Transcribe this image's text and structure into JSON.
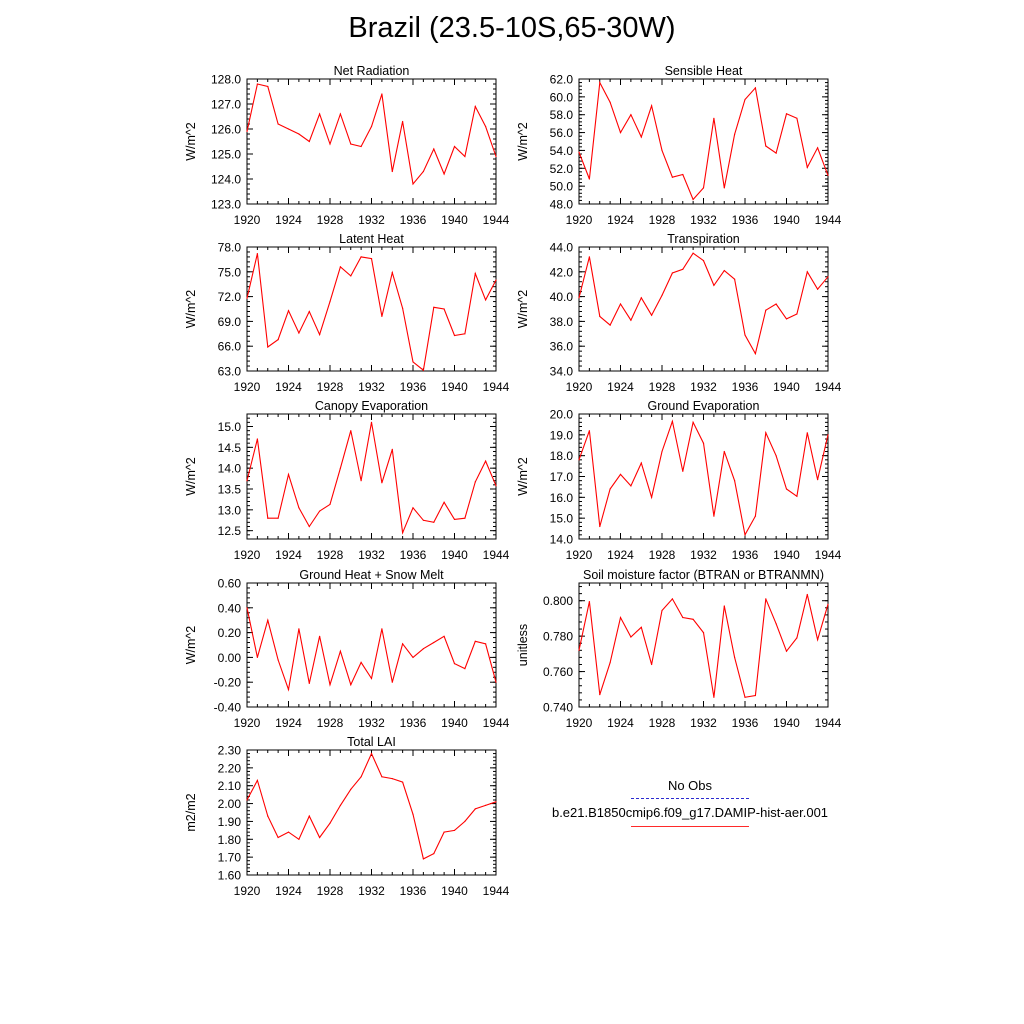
{
  "figure": {
    "title": "Brazil (23.5-10S,65-30W)",
    "legend": {
      "obs_label": "No Obs",
      "model_label": "b.e21.B1850cmip6.f09_g17.DAMIP-hist-aer.001",
      "obs_color": "#2b2bd0",
      "model_color": "#ff0000"
    }
  },
  "chart_data": [
    {
      "type": "line",
      "title": "Net Radiation",
      "ylabel": "W/m^2",
      "ylim": [
        123,
        128
      ],
      "yticks": [
        "123.0",
        "124.0",
        "125.0",
        "126.0",
        "127.0",
        "128.0"
      ],
      "xlim": [
        1920,
        1944
      ],
      "xticks": [
        "1920",
        "1924",
        "1928",
        "1932",
        "1936",
        "1940",
        "1944"
      ],
      "x": [
        1920,
        1921,
        1922,
        1923,
        1924,
        1925,
        1926,
        1927,
        1928,
        1929,
        1930,
        1931,
        1932,
        1933,
        1934,
        1935,
        1936,
        1937,
        1938,
        1939,
        1940,
        1941,
        1942,
        1943,
        1944
      ],
      "series": [
        {
          "name": "b.e21.B1850cmip6.f09_g17.DAMIP-hist-aer.001",
          "color": "#ff0000",
          "values": [
            125.9,
            127.8,
            127.7,
            126.2,
            126.0,
            125.8,
            125.5,
            126.6,
            125.4,
            126.6,
            125.4,
            125.3,
            126.1,
            127.4,
            124.3,
            126.3,
            123.8,
            124.3,
            125.2,
            124.2,
            125.3,
            124.9,
            126.9,
            126.1,
            124.9
          ]
        }
      ]
    },
    {
      "type": "line",
      "title": "Sensible Heat",
      "ylabel": "W/m^2",
      "ylim": [
        48,
        62
      ],
      "yticks": [
        "48.0",
        "50.0",
        "52.0",
        "54.0",
        "56.0",
        "58.0",
        "60.0",
        "62.0"
      ],
      "xlim": [
        1920,
        1944
      ],
      "xticks": [
        "1920",
        "1924",
        "1928",
        "1932",
        "1936",
        "1940",
        "1944"
      ],
      "x": [
        1920,
        1921,
        1922,
        1923,
        1924,
        1925,
        1926,
        1927,
        1928,
        1929,
        1930,
        1931,
        1932,
        1933,
        1934,
        1935,
        1936,
        1937,
        1938,
        1939,
        1940,
        1941,
        1942,
        1943,
        1944
      ],
      "series": [
        {
          "name": "b.e21.B1850cmip6.f09_g17.DAMIP-hist-aer.001",
          "color": "#ff0000",
          "values": [
            53.8,
            50.8,
            61.6,
            59.4,
            56.0,
            58.0,
            55.5,
            59.0,
            54.0,
            51.0,
            51.3,
            48.5,
            49.8,
            57.6,
            49.8,
            55.8,
            59.7,
            61.0,
            54.5,
            53.7,
            58.1,
            57.6,
            52.1,
            54.3,
            51.2
          ]
        }
      ]
    },
    {
      "type": "line",
      "title": "Latent Heat",
      "ylabel": "W/m^2",
      "ylim": [
        63,
        78
      ],
      "yticks": [
        "63.0",
        "66.0",
        "69.0",
        "72.0",
        "75.0",
        "78.0"
      ],
      "xlim": [
        1920,
        1944
      ],
      "xticks": [
        "1920",
        "1924",
        "1928",
        "1932",
        "1936",
        "1940",
        "1944"
      ],
      "x": [
        1920,
        1921,
        1922,
        1923,
        1924,
        1925,
        1926,
        1927,
        1928,
        1929,
        1930,
        1931,
        1932,
        1933,
        1934,
        1935,
        1936,
        1937,
        1938,
        1939,
        1940,
        1941,
        1942,
        1943,
        1944
      ],
      "series": [
        {
          "name": "b.e21.B1850cmip6.f09_g17.DAMIP-hist-aer.001",
          "color": "#ff0000",
          "values": [
            71.8,
            77.2,
            65.9,
            66.8,
            70.3,
            67.6,
            70.2,
            67.4,
            71.4,
            75.6,
            74.5,
            76.8,
            76.6,
            69.6,
            74.9,
            70.6,
            64.1,
            63.1,
            70.7,
            70.5,
            67.3,
            67.5,
            74.8,
            71.6,
            74.0
          ]
        }
      ]
    },
    {
      "type": "line",
      "title": "Transpiration",
      "ylabel": "W/m^2",
      "ylim": [
        34,
        44
      ],
      "yticks": [
        "34.0",
        "36.0",
        "38.0",
        "40.0",
        "42.0",
        "44.0"
      ],
      "xlim": [
        1920,
        1944
      ],
      "xticks": [
        "1920",
        "1924",
        "1928",
        "1932",
        "1936",
        "1940",
        "1944"
      ],
      "x": [
        1920,
        1921,
        1922,
        1923,
        1924,
        1925,
        1926,
        1927,
        1928,
        1929,
        1930,
        1931,
        1932,
        1933,
        1934,
        1935,
        1936,
        1937,
        1938,
        1939,
        1940,
        1941,
        1942,
        1943,
        1944
      ],
      "series": [
        {
          "name": "b.e21.B1850cmip6.f09_g17.DAMIP-hist-aer.001",
          "color": "#ff0000",
          "values": [
            39.9,
            43.2,
            38.4,
            37.7,
            39.4,
            38.1,
            39.9,
            38.5,
            40.1,
            41.9,
            42.2,
            43.5,
            42.9,
            40.9,
            42.1,
            41.4,
            36.9,
            35.4,
            38.9,
            39.4,
            38.2,
            38.6,
            42.0,
            40.6,
            41.6
          ]
        }
      ]
    },
    {
      "type": "line",
      "title": "Canopy Evaporation",
      "ylabel": "W/m^2",
      "ylim": [
        12.3,
        15.3
      ],
      "yticks": [
        "12.5",
        "13.0",
        "13.5",
        "14.0",
        "14.5",
        "15.0"
      ],
      "ytick_values": [
        12.5,
        13.0,
        13.5,
        14.0,
        14.5,
        15.0
      ],
      "xlim": [
        1920,
        1944
      ],
      "xticks": [
        "1920",
        "1924",
        "1928",
        "1932",
        "1936",
        "1940",
        "1944"
      ],
      "x": [
        1920,
        1921,
        1922,
        1923,
        1924,
        1925,
        1926,
        1927,
        1928,
        1929,
        1930,
        1931,
        1932,
        1933,
        1934,
        1935,
        1936,
        1937,
        1938,
        1939,
        1940,
        1941,
        1942,
        1943,
        1944
      ],
      "series": [
        {
          "name": "b.e21.B1850cmip6.f09_g17.DAMIP-hist-aer.001",
          "color": "#ff0000",
          "values": [
            13.7,
            14.7,
            12.8,
            12.8,
            13.85,
            13.05,
            12.6,
            12.97,
            13.13,
            14.0,
            14.9,
            13.7,
            15.1,
            13.65,
            14.45,
            12.45,
            13.05,
            12.75,
            12.7,
            13.18,
            12.77,
            12.8,
            13.67,
            14.17,
            13.58
          ]
        }
      ]
    },
    {
      "type": "line",
      "title": "Ground Evaporation",
      "ylabel": "W/m^2",
      "ylim": [
        14,
        20
      ],
      "yticks": [
        "14.0",
        "15.0",
        "16.0",
        "17.0",
        "18.0",
        "19.0",
        "20.0"
      ],
      "xlim": [
        1920,
        1944
      ],
      "xticks": [
        "1920",
        "1924",
        "1928",
        "1932",
        "1936",
        "1940",
        "1944"
      ],
      "x": [
        1920,
        1921,
        1922,
        1923,
        1924,
        1925,
        1926,
        1927,
        1928,
        1929,
        1930,
        1931,
        1932,
        1933,
        1934,
        1935,
        1936,
        1937,
        1938,
        1939,
        1940,
        1941,
        1942,
        1943,
        1944
      ],
      "series": [
        {
          "name": "b.e21.B1850cmip6.f09_g17.DAMIP-hist-aer.001",
          "color": "#ff0000",
          "values": [
            17.8,
            19.2,
            14.6,
            16.4,
            17.1,
            16.55,
            17.65,
            16.0,
            18.2,
            19.65,
            17.25,
            19.6,
            18.6,
            15.1,
            18.2,
            16.8,
            14.2,
            15.1,
            19.1,
            18.0,
            16.4,
            16.05,
            19.1,
            16.85,
            19.0
          ]
        }
      ]
    },
    {
      "type": "line",
      "title": "Ground Heat + Snow Melt",
      "ylabel": "W/m^2",
      "ylim": [
        -0.4,
        0.6
      ],
      "yticks": [
        "-0.40",
        "-0.20",
        "0.00",
        "0.20",
        "0.40",
        "0.60"
      ],
      "xlim": [
        1920,
        1944
      ],
      "xticks": [
        "1920",
        "1924",
        "1928",
        "1932",
        "1936",
        "1940",
        "1944"
      ],
      "x": [
        1920,
        1921,
        1922,
        1923,
        1924,
        1925,
        1926,
        1927,
        1928,
        1929,
        1930,
        1931,
        1932,
        1933,
        1934,
        1935,
        1936,
        1937,
        1938,
        1939,
        1940,
        1941,
        1942,
        1943,
        1944
      ],
      "series": [
        {
          "name": "b.e21.B1850cmip6.f09_g17.DAMIP-hist-aer.001",
          "color": "#ff0000",
          "values": [
            0.4,
            0.0,
            0.3,
            -0.02,
            -0.26,
            0.23,
            -0.21,
            0.17,
            -0.22,
            0.05,
            -0.22,
            -0.04,
            -0.17,
            0.23,
            -0.2,
            0.11,
            0.0,
            0.07,
            0.12,
            0.17,
            -0.05,
            -0.09,
            0.13,
            0.11,
            -0.2
          ]
        }
      ]
    },
    {
      "type": "line",
      "title": "Soil moisture factor (BTRAN or BTRANMN)",
      "ylabel": "unitless",
      "ylim": [
        0.74,
        0.81
      ],
      "yticks": [
        "0.740",
        "0.760",
        "0.780",
        "0.800"
      ],
      "ytick_values": [
        0.74,
        0.76,
        0.78,
        0.8
      ],
      "xlim": [
        1920,
        1944
      ],
      "xticks": [
        "1920",
        "1924",
        "1928",
        "1932",
        "1936",
        "1940",
        "1944"
      ],
      "x": [
        1920,
        1921,
        1922,
        1923,
        1924,
        1925,
        1926,
        1927,
        1928,
        1929,
        1930,
        1931,
        1932,
        1933,
        1934,
        1935,
        1936,
        1937,
        1938,
        1939,
        1940,
        1941,
        1942,
        1943,
        1944
      ],
      "series": [
        {
          "name": "b.e21.B1850cmip6.f09_g17.DAMIP-hist-aer.001",
          "color": "#ff0000",
          "values": [
            0.772,
            0.7995,
            0.747,
            0.765,
            0.7905,
            0.7795,
            0.785,
            0.764,
            0.7945,
            0.801,
            0.7905,
            0.7895,
            0.782,
            0.7455,
            0.797,
            0.768,
            0.7455,
            0.7465,
            0.801,
            0.787,
            0.7715,
            0.779,
            0.8035,
            0.778,
            0.798
          ]
        }
      ]
    },
    {
      "type": "line",
      "title": "Total LAI",
      "ylabel": "m2/m2",
      "ylim": [
        1.6,
        2.3
      ],
      "yticks": [
        "1.60",
        "1.70",
        "1.80",
        "1.90",
        "2.00",
        "2.10",
        "2.20",
        "2.30"
      ],
      "xlim": [
        1920,
        1944
      ],
      "xticks": [
        "1920",
        "1924",
        "1928",
        "1932",
        "1936",
        "1940",
        "1944"
      ],
      "x": [
        1920,
        1921,
        1922,
        1923,
        1924,
        1925,
        1926,
        1927,
        1928,
        1929,
        1930,
        1931,
        1932,
        1933,
        1934,
        1935,
        1936,
        1937,
        1938,
        1939,
        1940,
        1941,
        1942,
        1943,
        1944
      ],
      "series": [
        {
          "name": "b.e21.B1850cmip6.f09_g17.DAMIP-hist-aer.001",
          "color": "#ff0000",
          "values": [
            2.02,
            2.13,
            1.93,
            1.81,
            1.84,
            1.8,
            1.93,
            1.81,
            1.89,
            1.99,
            2.08,
            2.15,
            2.28,
            2.15,
            2.14,
            2.12,
            1.94,
            1.69,
            1.72,
            1.84,
            1.85,
            1.9,
            1.97,
            1.99,
            2.01
          ]
        }
      ]
    }
  ]
}
